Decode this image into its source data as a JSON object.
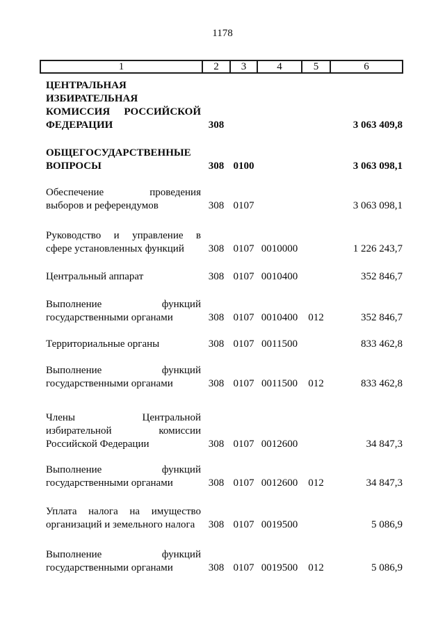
{
  "colors": {
    "ink": "#0a0a0a",
    "paper": "#ffffff"
  },
  "page": {
    "number": "1178"
  },
  "table": {
    "header": [
      "1",
      "2",
      "3",
      "4",
      "5",
      "6"
    ],
    "rows": [
      {
        "title": "ЦЕНТРАЛЬНАЯ\nИЗБИРАТЕЛЬНАЯ\nКОМИССИЯ РОССИЙСКОЙ\nФЕДЕРАЦИИ",
        "col2": "308",
        "col3": "",
        "col4": "",
        "col5": "",
        "amount": "3 063 409,8"
      },
      {
        "title": "ОБЩЕГОСУДАРСТВЕННЫЕ\nВОПРОСЫ",
        "col2": "308",
        "col3": "0100",
        "col4": "",
        "col5": "",
        "amount": "3 063 098,1"
      },
      {
        "title": "Обеспечение проведения\nвыборов и референдумов",
        "col2": "308",
        "col3": "0107",
        "col4": "",
        "col5": "",
        "amount": "3 063 098,1"
      },
      {
        "title": "Руководство и управление в\nсфере установленных функций",
        "col2": "308",
        "col3": "0107",
        "col4": "0010000",
        "col5": "",
        "amount": "1 226 243,7"
      },
      {
        "title": "Центральный аппарат",
        "col2": "308",
        "col3": "0107",
        "col4": "0010400",
        "col5": "",
        "amount": "352 846,7"
      },
      {
        "title": "Выполнение функций\nгосударственными органами",
        "col2": "308",
        "col3": "0107",
        "col4": "0010400",
        "col5": "012",
        "amount": "352 846,7"
      },
      {
        "title": "Территориальные органы",
        "col2": "308",
        "col3": "0107",
        "col4": "0011500",
        "col5": "",
        "amount": "833 462,8"
      },
      {
        "title": "Выполнение функций\nгосударственными органами",
        "col2": "308",
        "col3": "0107",
        "col4": "0011500",
        "col5": "012",
        "amount": "833 462,8"
      },
      {
        "title": "Члены Центральной\nизбирательной комиссии\nРоссийской Федерации",
        "col2": "308",
        "col3": "0107",
        "col4": "0012600",
        "col5": "",
        "amount": "34 847,3"
      },
      {
        "title": "Выполнение функций\nгосударственными органами",
        "col2": "308",
        "col3": "0107",
        "col4": "0012600",
        "col5": "012",
        "amount": "34 847,3"
      },
      {
        "title": "Уплата налога на имущество\nорганизаций и земельного налога",
        "col2": "308",
        "col3": "0107",
        "col4": "0019500",
        "col5": "",
        "amount": "5 086,9"
      },
      {
        "title": "Выполнение функций\nгосударственными органами",
        "col2": "308",
        "col3": "0107",
        "col4": "0019500",
        "col5": "012",
        "amount": "5 086,9"
      }
    ]
  }
}
